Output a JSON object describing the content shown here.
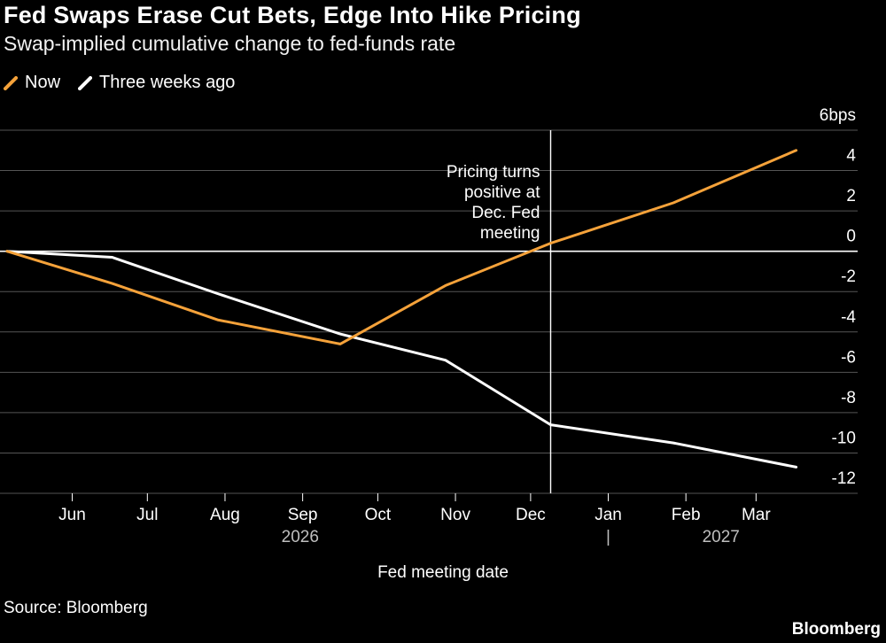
{
  "header": {
    "title": "Fed Swaps Erase Cut Bets, Edge Into Hike Pricing",
    "subtitle": "Swap-implied cumulative change to fed-funds rate"
  },
  "footer": {
    "source": "Source: Bloomberg",
    "brand": "Bloomberg"
  },
  "colors": {
    "background": "#000000",
    "now": "#f5a23a",
    "three_weeks_ago": "#ffffff",
    "grid": "#555555",
    "zero_line": "#ffffff"
  },
  "chart_data": {
    "type": "line",
    "title": "Fed Swaps Erase Cut Bets, Edge Into Hike Pricing",
    "subtitle": "Swap-implied cumulative change to fed-funds rate",
    "xlabel": "Fed meeting date",
    "ylabel": "",
    "y_unit_label": "6bps",
    "ylim": [
      -12,
      6
    ],
    "yticks": [
      6,
      4,
      2,
      0,
      -2,
      -4,
      -6,
      -8,
      -10,
      -12
    ],
    "ytick_labels": [
      "6bps",
      "4",
      "2",
      "0",
      "-2",
      "-4",
      "-6",
      "-8",
      "-10",
      "-12"
    ],
    "grid": true,
    "legend_position": "top-left",
    "x_start": "2026-05-06",
    "x_end": "2027-03-26",
    "month_ticks": [
      {
        "label": "Jun",
        "date": "2026-06-01"
      },
      {
        "label": "Jul",
        "date": "2026-07-01"
      },
      {
        "label": "Aug",
        "date": "2026-08-01"
      },
      {
        "label": "Sep",
        "date": "2026-09-01"
      },
      {
        "label": "Oct",
        "date": "2026-10-01"
      },
      {
        "label": "Nov",
        "date": "2026-11-01"
      },
      {
        "label": "Dec",
        "date": "2026-12-01"
      },
      {
        "label": "Jan",
        "date": "2027-01-01"
      },
      {
        "label": "Feb",
        "date": "2027-02-01"
      },
      {
        "label": "Mar",
        "date": "2027-03-01"
      }
    ],
    "year_labels": [
      {
        "label": "2026",
        "date": "2026-08-31"
      },
      {
        "label": "2027",
        "date": "2027-02-15"
      }
    ],
    "year_divider": {
      "label": "|",
      "date": "2027-01-01"
    },
    "series": [
      {
        "name": "Now",
        "color": "#f5a23a",
        "points": [
          {
            "x": "2026-05-06",
            "y": 0.0
          },
          {
            "x": "2026-06-17",
            "y": -1.6
          },
          {
            "x": "2026-07-29",
            "y": -3.4
          },
          {
            "x": "2026-09-16",
            "y": -4.6
          },
          {
            "x": "2026-10-28",
            "y": -1.7
          },
          {
            "x": "2026-12-09",
            "y": 0.4
          },
          {
            "x": "2027-01-27",
            "y": 2.4
          },
          {
            "x": "2027-03-17",
            "y": 5.0
          }
        ]
      },
      {
        "name": "Three weeks ago",
        "color": "#ffffff",
        "points": [
          {
            "x": "2026-05-06",
            "y": 0.0
          },
          {
            "x": "2026-06-17",
            "y": -0.3
          },
          {
            "x": "2026-07-29",
            "y": -2.1
          },
          {
            "x": "2026-09-16",
            "y": -4.1
          },
          {
            "x": "2026-10-28",
            "y": -5.4
          },
          {
            "x": "2026-12-09",
            "y": -8.6
          },
          {
            "x": "2027-01-27",
            "y": -9.5
          },
          {
            "x": "2027-03-17",
            "y": -10.7
          }
        ]
      }
    ],
    "annotations": [
      {
        "date": "2026-12-09",
        "lines": [
          "Pricing turns",
          "positive at",
          "Dec. Fed",
          "meeting"
        ]
      }
    ]
  }
}
